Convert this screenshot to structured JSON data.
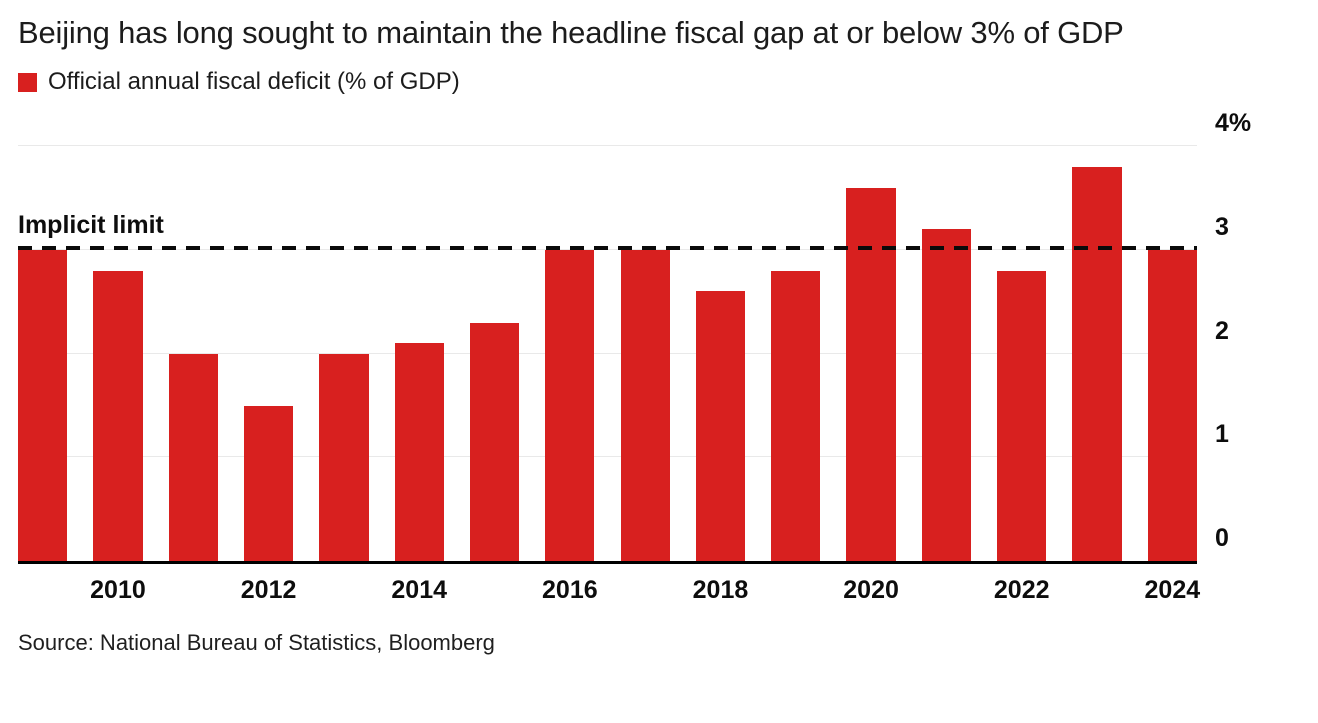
{
  "title": "Beijing has long sought to maintain the headline fiscal gap at or below 3% of GDP",
  "legend": {
    "label": "Official annual fiscal deficit (% of GDP)",
    "color": "#d8201f"
  },
  "limit": {
    "label": "Implicit limit",
    "value": 3
  },
  "source": "Source: National Bureau of Statistics, Bloomberg",
  "chart_data": {
    "type": "bar",
    "title": "Beijing has long sought to maintain the headline fiscal gap at or below 3% of GDP",
    "legend_label": "Official annual fiscal deficit (% of GDP)",
    "categories": [
      2009,
      2010,
      2011,
      2012,
      2013,
      2014,
      2015,
      2016,
      2017,
      2018,
      2019,
      2020,
      2021,
      2022,
      2023,
      2024
    ],
    "values": [
      3.0,
      2.8,
      2.0,
      1.5,
      2.0,
      2.1,
      2.3,
      3.0,
      3.0,
      2.6,
      2.8,
      3.6,
      3.2,
      2.8,
      3.8,
      3.0
    ],
    "bar_color": "#d8201f",
    "ylabel": "% of GDP",
    "ylim": [
      0,
      4
    ],
    "yticks": [
      {
        "value": 4,
        "label": "4%"
      },
      {
        "value": 3,
        "label": "3"
      },
      {
        "value": 2,
        "label": "2"
      },
      {
        "value": 1,
        "label": "1"
      },
      {
        "value": 0,
        "label": "0"
      }
    ],
    "xticks": [
      2010,
      2012,
      2014,
      2016,
      2018,
      2020,
      2022,
      2024
    ],
    "annotation": {
      "label": "Implicit limit",
      "y": 3,
      "style": "dashed"
    },
    "grid": "horizontal",
    "legend_position": "top-left",
    "y_axis_side": "right"
  }
}
